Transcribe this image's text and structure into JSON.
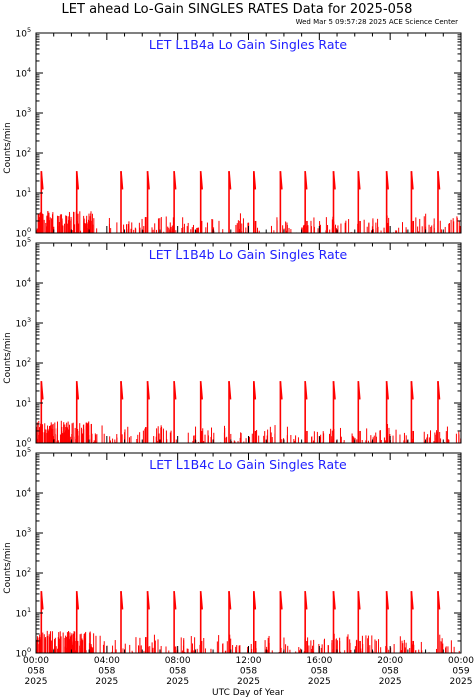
{
  "header": {
    "title": "LET ahead Lo-Gain SINGLES RATES Data for 2025-058",
    "timestamp": "Wed Mar  5 09:57:28 2025 ACE Science Center"
  },
  "colors": {
    "data": "#ff0000",
    "panel_title": "#2020ff",
    "axes": "#000000"
  },
  "chart_data": [
    {
      "type": "line",
      "title": "LET L1B4a Lo Gain Singles Rate",
      "ylabel": "Counts/min",
      "yscale": "log",
      "ylim": [
        1,
        100000
      ],
      "xlim": [
        0,
        24
      ],
      "series": [
        {
          "x": [
            0.2,
            0.3,
            2.3,
            2.35,
            4.8,
            6.2,
            6.3,
            7.8,
            9.3,
            9.35,
            10.9,
            12.3,
            12.4,
            13.8,
            15.2,
            15.3,
            16.8,
            18.2,
            18.3,
            19.8,
            21.2,
            21.3,
            22.7
          ],
          "y": [
            2.5,
            35,
            35,
            2.0,
            35,
            2.5,
            35,
            35,
            35,
            2.0,
            35,
            35,
            2.0,
            35,
            35,
            2.0,
            35,
            35,
            2.0,
            35,
            35,
            2.0,
            35
          ]
        }
      ]
    },
    {
      "type": "line",
      "title": "LET L1B4b Lo Gain Singles Rate",
      "ylabel": "Counts/min",
      "yscale": "log",
      "ylim": [
        1,
        100000
      ],
      "xlim": [
        0,
        24
      ],
      "series": [
        {
          "x": [
            0.2,
            0.3,
            2.3,
            2.35,
            4.8,
            6.2,
            6.3,
            7.8,
            9.3,
            9.35,
            10.9,
            12.3,
            12.4,
            13.8,
            15.2,
            15.3,
            16.8,
            18.2,
            18.3,
            19.8,
            21.2,
            21.3,
            22.7
          ],
          "y": [
            2.5,
            35,
            35,
            2.0,
            35,
            2.5,
            35,
            35,
            35,
            2.0,
            35,
            35,
            2.0,
            35,
            35,
            2.0,
            35,
            35,
            2.0,
            35,
            35,
            2.0,
            35
          ]
        }
      ]
    },
    {
      "type": "line",
      "title": "LET L1B4c Lo Gain Singles Rate",
      "ylabel": "Counts/min",
      "yscale": "log",
      "ylim": [
        1,
        100000
      ],
      "xlim": [
        0,
        24
      ],
      "series": [
        {
          "x": [
            0.2,
            0.3,
            2.3,
            2.35,
            4.8,
            6.2,
            6.3,
            7.8,
            9.3,
            9.35,
            10.9,
            12.3,
            12.4,
            13.8,
            15.2,
            15.3,
            16.8,
            18.2,
            18.3,
            19.8,
            21.2,
            21.3,
            22.7
          ],
          "y": [
            2.5,
            35,
            35,
            2.0,
            35,
            2.5,
            35,
            35,
            35,
            2.0,
            35,
            35,
            2.0,
            35,
            35,
            2.0,
            35,
            35,
            2.0,
            35,
            35,
            2.0,
            35
          ]
        }
      ]
    }
  ],
  "ytick_labels": [
    {
      "base": "10",
      "exp": "0"
    },
    {
      "base": "10",
      "exp": "1"
    },
    {
      "base": "10",
      "exp": "2"
    },
    {
      "base": "10",
      "exp": "3"
    },
    {
      "base": "10",
      "exp": "4"
    },
    {
      "base": "10",
      "exp": "5"
    }
  ],
  "xtick_labels": [
    {
      "hour": 0,
      "lines": [
        "00:00",
        "058",
        "2025"
      ]
    },
    {
      "hour": 4,
      "lines": [
        "04:00",
        "058",
        "2025"
      ]
    },
    {
      "hour": 8,
      "lines": [
        "08:00",
        "058",
        "2025"
      ]
    },
    {
      "hour": 12,
      "lines": [
        "12:00",
        "058",
        "2025"
      ]
    },
    {
      "hour": 16,
      "lines": [
        "16:00",
        "058",
        "2025"
      ]
    },
    {
      "hour": 20,
      "lines": [
        "20:00",
        "058",
        "2025"
      ]
    },
    {
      "hour": 24,
      "lines": [
        "00:00",
        "059",
        "2025"
      ]
    }
  ],
  "xlabel": "UTC Day of Year"
}
